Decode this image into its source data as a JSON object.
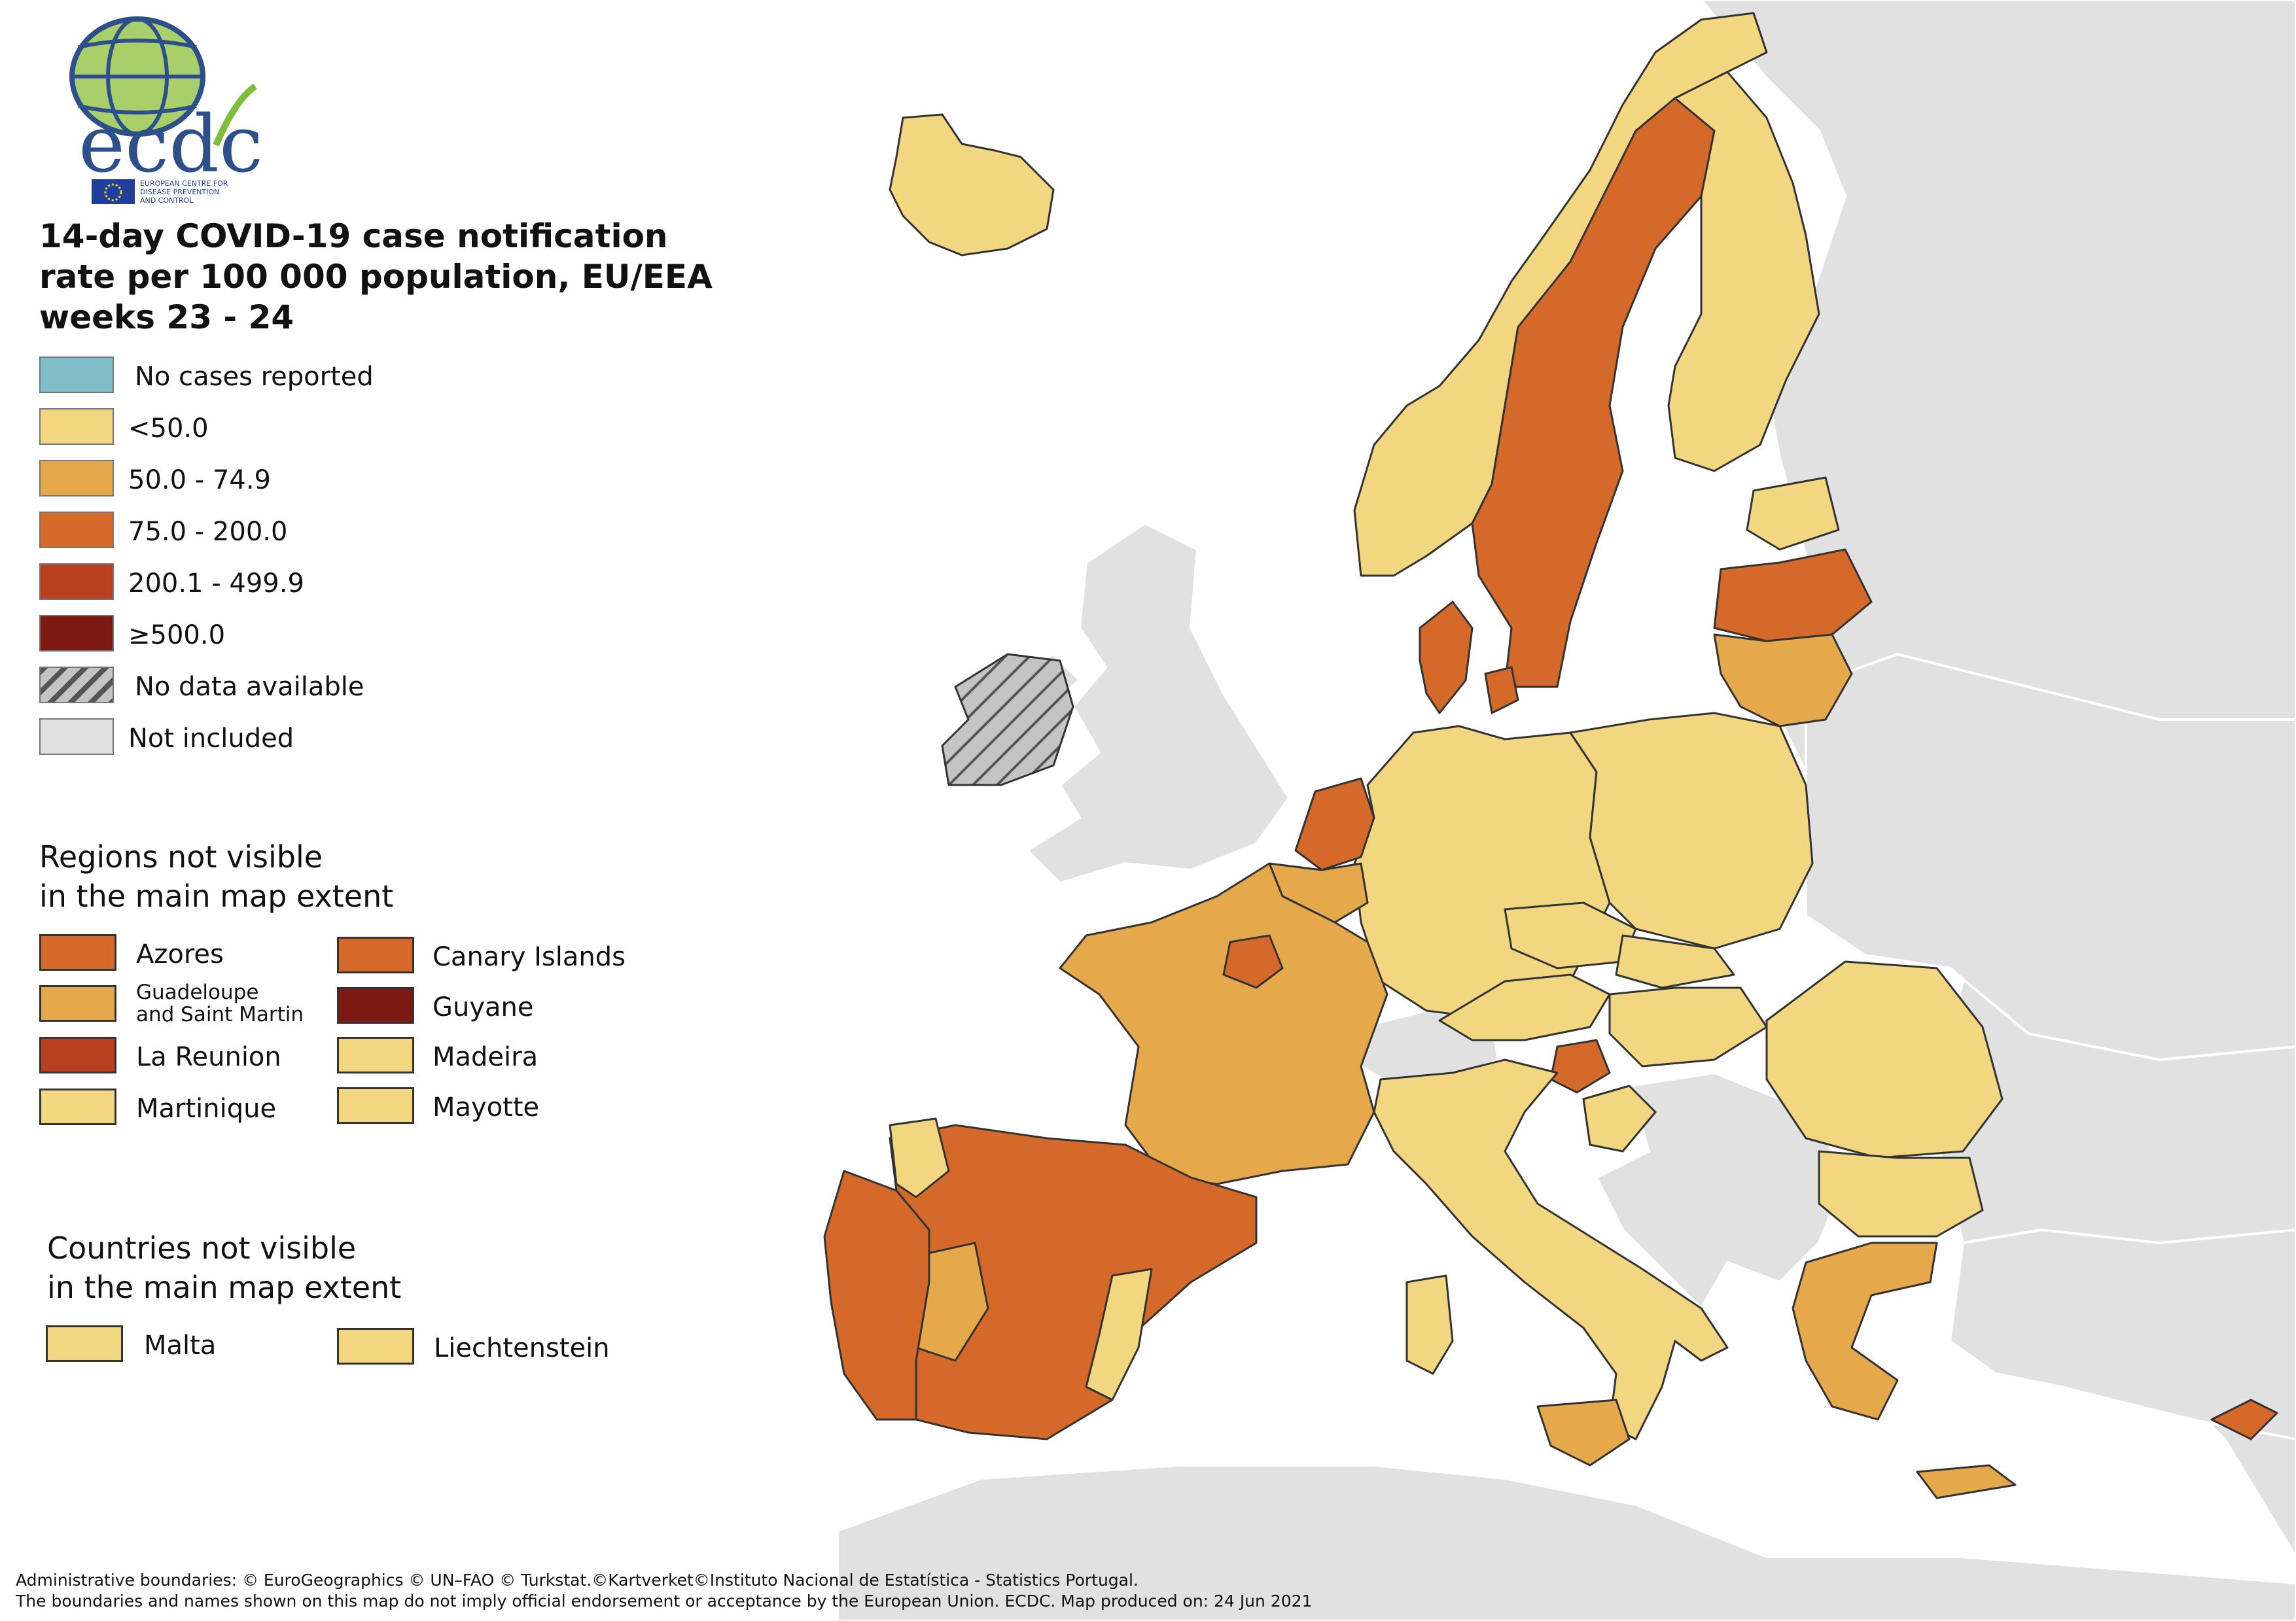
{
  "logo": {
    "wordmark": "ecdc",
    "agency_line_1": "EUROPEAN CENTRE FOR",
    "agency_line_2": "DISEASE PREVENTION",
    "agency_line_3": "AND CONTROL"
  },
  "title": {
    "line_1": "14-day COVID-19 case notification",
    "line_2": "rate per 100 000 population, EU/EEA",
    "line_3": "weeks 23 - 24"
  },
  "legend": {
    "items": [
      {
        "label": "No cases reported",
        "color": "#7fbec6"
      },
      {
        "label": "<50.0",
        "color": "#f2d780"
      },
      {
        "label": "50.0 - 74.9",
        "color": "#e5a84a"
      },
      {
        "label": "75.0 - 200.0",
        "color": "#d4692a"
      },
      {
        "label": "200.1 - 499.9",
        "color": "#b9401f"
      },
      {
        "label": "≥500.0",
        "color": "#7c1a12"
      },
      {
        "label": "No data available",
        "color": "#c0c0c0"
      },
      {
        "label": "Not included",
        "color": "#e1e1e1"
      }
    ]
  },
  "regions_section": {
    "heading_line_1": "Regions not visible",
    "heading_line_2": "in the main map extent",
    "items": [
      {
        "label": "Azores",
        "color": "#d4692a"
      },
      {
        "label": "Canary Islands",
        "color": "#d4692a"
      },
      {
        "label_line_1": "Guadeloupe",
        "label_line_2": "and Saint Martin",
        "color": "#e5a84a"
      },
      {
        "label": "Guyane",
        "color": "#7c1a12"
      },
      {
        "label": "La Reunion",
        "color": "#b9401f"
      },
      {
        "label": "Madeira",
        "color": "#f2d780"
      },
      {
        "label": "Martinique",
        "color": "#f2d780"
      },
      {
        "label": "Mayotte",
        "color": "#f2d780"
      }
    ]
  },
  "countries_section": {
    "heading_line_1": "Countries not visible",
    "heading_line_2": "in the main map extent",
    "items": [
      {
        "label": "Malta",
        "color": "#f2d780"
      },
      {
        "label": "Liechtenstein",
        "color": "#f2d780"
      }
    ]
  },
  "footer": {
    "line_1": "Administrative boundaries: © EuroGeographics © UN–FAO © Turkstat.©Kartverket©Instituto Nacional de Estatística - Statistics Portugal.",
    "line_2": "The boundaries and names shown on this map do not imply official endorsement or acceptance by the European Union. ECDC. Map produced on: 24 Jun 2021"
  },
  "map_regions": [
    {
      "name": "Iceland",
      "class": "<50.0"
    },
    {
      "name": "Ireland",
      "class": "No data available"
    },
    {
      "name": "Norway",
      "class": "<50.0"
    },
    {
      "name": "Sweden",
      "class": "75.0 - 200.0"
    },
    {
      "name": "Finland",
      "class": "<50.0"
    },
    {
      "name": "Latvia",
      "class": "75.0 - 200.0"
    },
    {
      "name": "Lithuania",
      "class": "50.0 - 74.9"
    },
    {
      "name": "Estonia",
      "class": "<50.0"
    },
    {
      "name": "Denmark",
      "class": "75.0 - 200.0"
    },
    {
      "name": "Netherlands",
      "class": "75.0 - 200.0"
    },
    {
      "name": "Belgium",
      "class": "50.0 - 74.9"
    },
    {
      "name": "France",
      "class": "50.0 - 74.9"
    },
    {
      "name": "Spain",
      "class": "75.0 - 200.0"
    },
    {
      "name": "Portugal",
      "class": "75.0 - 200.0"
    },
    {
      "name": "Germany",
      "class": "<50.0"
    },
    {
      "name": "Poland",
      "class": "<50.0"
    },
    {
      "name": "Czechia",
      "class": "<50.0"
    },
    {
      "name": "Austria",
      "class": "<50.0"
    },
    {
      "name": "Slovenia",
      "class": "75.0 - 200.0"
    },
    {
      "name": "Italy",
      "class": "<50.0"
    },
    {
      "name": "Romania",
      "class": "<50.0"
    },
    {
      "name": "Bulgaria",
      "class": "<50.0"
    },
    {
      "name": "Greece",
      "class": "50.0 - 74.9"
    },
    {
      "name": "Cyprus",
      "class": "75.0 - 200.0"
    },
    {
      "name": "Switzerland",
      "class": "Not included"
    },
    {
      "name": "United Kingdom",
      "class": "Not included"
    }
  ]
}
